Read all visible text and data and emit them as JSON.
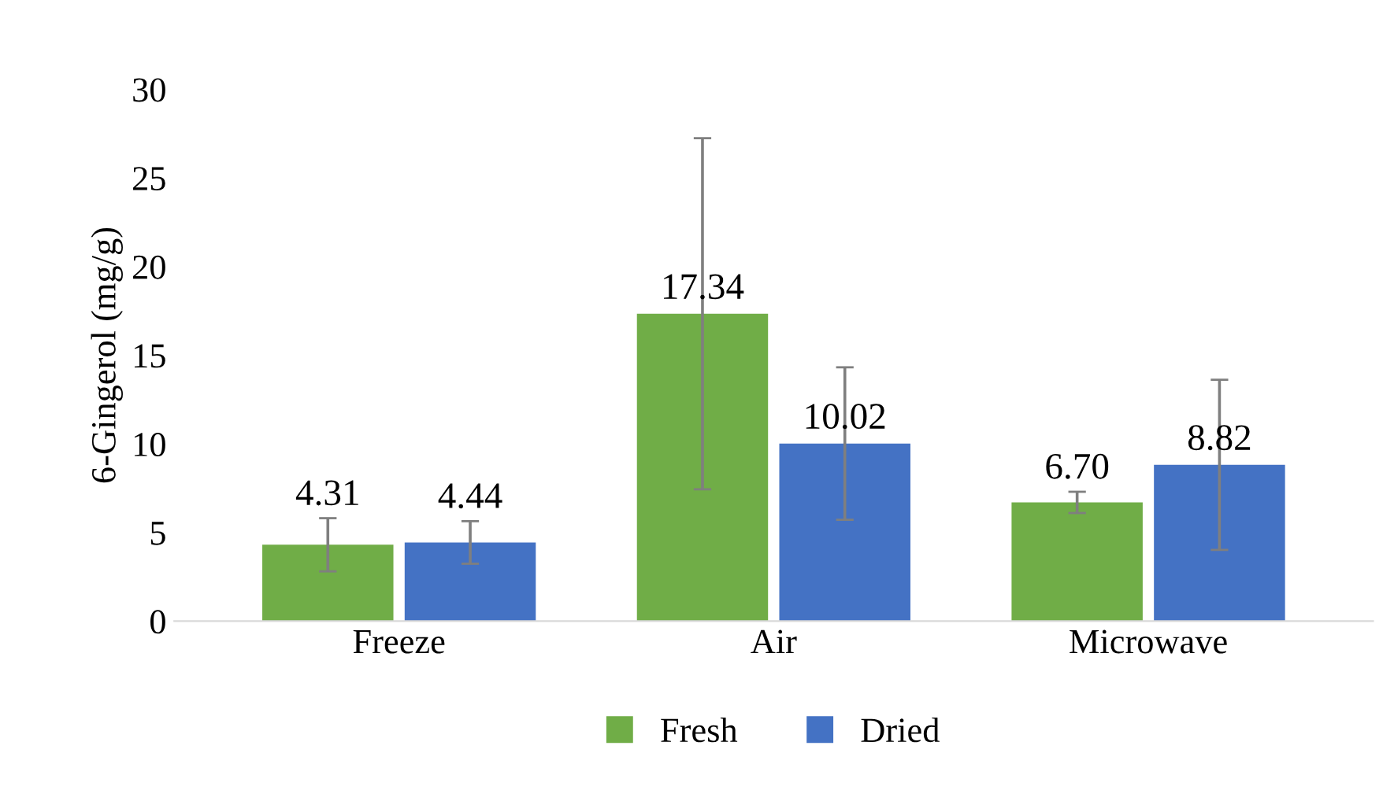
{
  "chart_data": {
    "type": "bar",
    "ylabel": "6-Gingerol (mg/g)",
    "categories": [
      "Freeze",
      "Air",
      "Microwave"
    ],
    "series": [
      {
        "name": "Fresh",
        "color": "#70ad47",
        "values": [
          4.31,
          17.34,
          6.7
        ],
        "value_labels": [
          "4.31",
          "17.34",
          "6.70"
        ],
        "errors": [
          1.5,
          9.9,
          0.6
        ]
      },
      {
        "name": "Dried",
        "color": "#4472c4",
        "values": [
          4.44,
          10.02,
          8.82
        ],
        "value_labels": [
          "4.44",
          "10.02",
          "8.82"
        ],
        "errors": [
          1.2,
          4.3,
          4.8
        ]
      }
    ],
    "ylim": [
      0,
      30
    ],
    "yticks": [
      0,
      5,
      10,
      15,
      20,
      25,
      30
    ],
    "grid": false,
    "legend": "bottom"
  }
}
